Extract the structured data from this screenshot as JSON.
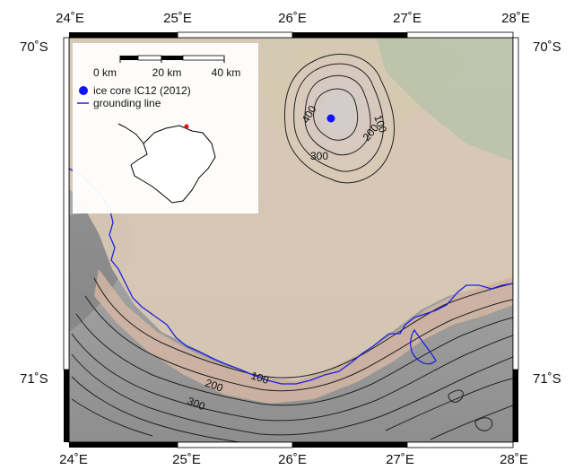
{
  "map": {
    "lon_top": [
      "24˚E",
      "25˚E",
      "26˚E",
      "27˚E",
      "28˚E"
    ],
    "lon_bottom": [
      "24˚E",
      "25˚E",
      "26˚E",
      "27˚E",
      "28˚E"
    ],
    "lat_north": "70˚S",
    "lat_south": "71˚S",
    "contour_labels_rumple": [
      "400",
      "300",
      "200",
      "100"
    ],
    "contour_labels_shelf": [
      "100",
      "200",
      "300"
    ],
    "colors": {
      "shelf": "#d9cab4",
      "rock": "#9c9c9c",
      "vegetation": "#9bbf97",
      "grounding_line": "#1f1fe6",
      "ice_core": "#1212ff",
      "antarctica_marker": "#e01010"
    }
  },
  "inset": {
    "scale_labels": [
      "0 km",
      "20 km",
      "40 km"
    ],
    "legend": [
      {
        "label": "ice core IC12 (2012)",
        "symbol": "blue-dot"
      },
      {
        "label": "grounding line",
        "symbol": "blue-line"
      }
    ]
  }
}
